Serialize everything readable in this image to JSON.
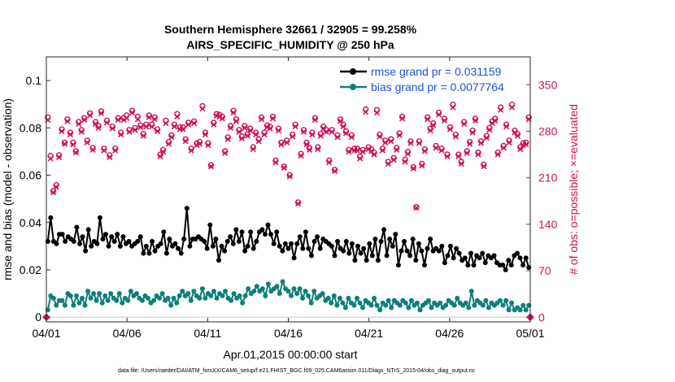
{
  "chart_data": {
    "type": "line",
    "title": "Southern Hemisphere 32661 / 32905 = 99.258%",
    "subtitle": "AIRS_SPECIFIC_HUMIDITY @ 250 hPa",
    "xlabel": "Apr.01,2015 00:00:00 start",
    "ylabel_left": "rmse and bias (model - observation)",
    "ylabel_right": "# of obs: o=possible; ×=evaluated",
    "footnote": "data file: /Users/raeder/DAI/ATM_forcXX/CAM6_setup/f.e21.FHIST_BGC.f09_025.CAM6assim.011/Diags_NTrS_2015-04/obs_diag_output.nc",
    "x_range_days": [
      0,
      30
    ],
    "x_tick_values": [
      0,
      5,
      10,
      15,
      20,
      25,
      30
    ],
    "x_tick_labels": [
      "04/01",
      "04/06",
      "04/11",
      "04/16",
      "04/21",
      "04/26",
      "05/01"
    ],
    "ylim_left": [
      -0.002,
      0.11
    ],
    "y_tick_labels_left": [
      "0",
      "0.02",
      "0.04",
      "0.06",
      "0.08",
      "0.1"
    ],
    "ylim_right": [
      -7,
      392
    ],
    "y_tick_labels_right": [
      "0",
      "70",
      "140",
      "210",
      "280",
      "350"
    ],
    "colors": {
      "rmse": "#000000",
      "bias": "#0f7f7a",
      "obs": "#d0105a",
      "legend_text": "#1f4fe0"
    },
    "legend": [
      {
        "name": "rmse",
        "label": "rmse grand pr = 0.031159"
      },
      {
        "name": "bias",
        "label": "bias grand pr = 0.0077764"
      }
    ],
    "series": [
      {
        "name": "rmse",
        "axis": "left",
        "values": [
          0.032,
          0.042,
          0.032,
          0.031,
          0.035,
          0.035,
          0.032,
          0.034,
          0.033,
          0.032,
          0.038,
          0.031,
          0.034,
          0.028,
          0.037,
          0.03,
          0.032,
          0.031,
          0.042,
          0.033,
          0.035,
          0.03,
          0.034,
          0.032,
          0.035,
          0.03,
          0.034,
          0.031,
          0.032,
          0.03,
          0.031,
          0.032,
          0.034,
          0.027,
          0.03,
          0.027,
          0.032,
          0.028,
          0.03,
          0.031,
          0.036,
          0.027,
          0.033,
          0.03,
          0.031,
          0.029,
          0.027,
          0.033,
          0.046,
          0.03,
          0.033,
          0.033,
          0.034,
          0.033,
          0.032,
          0.029,
          0.039,
          0.03,
          0.033,
          0.024,
          0.03,
          0.028,
          0.032,
          0.034,
          0.031,
          0.037,
          0.032,
          0.036,
          0.028,
          0.03,
          0.036,
          0.029,
          0.032,
          0.036,
          0.037,
          0.035,
          0.039,
          0.035,
          0.031,
          0.036,
          0.03,
          0.028,
          0.031,
          0.029,
          0.031,
          0.025,
          0.031,
          0.034,
          0.029,
          0.036,
          0.029,
          0.026,
          0.032,
          0.034,
          0.029,
          0.033,
          0.032,
          0.031,
          0.03,
          0.026,
          0.032,
          0.029,
          0.028,
          0.032,
          0.027,
          0.031,
          0.024,
          0.03,
          0.027,
          0.029,
          0.024,
          0.031,
          0.026,
          0.033,
          0.024,
          0.032,
          0.037,
          0.026,
          0.033,
          0.03,
          0.035,
          0.022,
          0.028,
          0.032,
          0.028,
          0.026,
          0.033,
          0.024,
          0.031,
          0.028,
          0.022,
          0.029,
          0.033,
          0.028,
          0.029,
          0.028,
          0.03,
          0.023,
          0.026,
          0.03,
          0.025,
          0.029,
          0.027,
          0.024,
          0.025,
          0.022,
          0.027,
          0.022,
          0.026,
          0.025,
          0.027,
          0.023,
          0.026,
          0.025,
          0.026,
          0.023,
          0.022,
          0.022,
          0.02,
          0.024,
          0.022,
          0.026,
          0.027,
          0.025,
          0.022,
          0.025,
          0.021
        ]
      },
      {
        "name": "bias",
        "axis": "left",
        "values": [
          0.003,
          0.009,
          0.008,
          0.005,
          0.007,
          0.007,
          0.005,
          0.01,
          0.009,
          0.005,
          0.009,
          0.006,
          0.008,
          0.005,
          0.011,
          0.008,
          0.01,
          0.007,
          0.01,
          0.006,
          0.009,
          0.007,
          0.01,
          0.008,
          0.007,
          0.01,
          0.006,
          0.008,
          0.007,
          0.011,
          0.009,
          0.01,
          0.008,
          0.007,
          0.009,
          0.008,
          0.006,
          0.007,
          0.009,
          0.008,
          0.01,
          0.007,
          0.008,
          0.005,
          0.008,
          0.006,
          0.009,
          0.011,
          0.009,
          0.01,
          0.007,
          0.011,
          0.009,
          0.008,
          0.012,
          0.008,
          0.01,
          0.009,
          0.011,
          0.008,
          0.01,
          0.009,
          0.011,
          0.008,
          0.007,
          0.01,
          0.008,
          0.009,
          0.006,
          0.009,
          0.012,
          0.01,
          0.011,
          0.013,
          0.011,
          0.012,
          0.009,
          0.014,
          0.011,
          0.012,
          0.013,
          0.01,
          0.015,
          0.012,
          0.011,
          0.009,
          0.012,
          0.01,
          0.012,
          0.008,
          0.011,
          0.009,
          0.006,
          0.011,
          0.008,
          0.009,
          0.01,
          0.007,
          0.008,
          0.006,
          0.009,
          0.005,
          0.008,
          0.006,
          0.004,
          0.008,
          0.006,
          0.005,
          0.008,
          0.006,
          0.004,
          0.007,
          0.006,
          0.005,
          0.008,
          0.005,
          0.003,
          0.006,
          0.005,
          0.007,
          0.004,
          0.007,
          0.006,
          0.005,
          0.007,
          0.006,
          0.004,
          0.007,
          0.005,
          0.006,
          0.003,
          0.005,
          0.006,
          0.007,
          0.004,
          0.006,
          0.005,
          0.006,
          0.004,
          0.005,
          0.007,
          0.006,
          0.005,
          0.008,
          0.006,
          0.005,
          0.006,
          0.004,
          0.011,
          0.005,
          0.007,
          0.006,
          0.005,
          0.007,
          0.004,
          0.006,
          0.005,
          0.006,
          0.007,
          0.005,
          0.007,
          0.003,
          0.006,
          0.003,
          0.004,
          0.003,
          0.005,
          0.003,
          0.005
        ]
      },
      {
        "name": "obs_possible",
        "axis": "right",
        "values": [
          301,
          243,
          190,
          199,
          244,
          283,
          263,
          298,
          278,
          263,
          250,
          294,
          282,
          300,
          266,
          307,
          255,
          294,
          288,
          310,
          254,
          296,
          244,
          287,
          254,
          300,
          278,
          300,
          304,
          282,
          311,
          285,
          302,
          289,
          276,
          290,
          304,
          290,
          301,
          283,
          245,
          252,
          296,
          264,
          274,
          290,
          306,
          286,
          286,
          268,
          293,
          254,
          295,
          262,
          264,
          318,
          278,
          262,
          229,
          293,
          306,
          305,
          302,
          250,
          271,
          288,
          311,
          298,
          282,
          272,
          288,
          276,
          284,
          256,
          278,
          268,
          301,
          278,
          289,
          287,
          302,
          236,
          284,
          263,
          227,
          266,
          214,
          275,
          290,
          173,
          246,
          282,
          263,
          255,
          278,
          300,
          256,
          276,
          287,
          282,
          236,
          282,
          222,
          274,
          298,
          290,
          280,
          252,
          274,
          254,
          254,
          242,
          252,
          313,
          256,
          253,
          248,
          312,
          275,
          254,
          266,
          234,
          268,
          240,
          255,
          277,
          302,
          237,
          249,
          265,
          226,
          166,
          265,
          231,
          253,
          301,
          284,
          292,
          258,
          308,
          254,
          299,
          245,
          286,
          320,
          275,
          245,
          234,
          294,
          250,
          264,
          281,
          299,
          248,
          265,
          230,
          273,
          285,
          295,
          299,
          248,
          316,
          258,
          290,
          266,
          320,
          281,
          276,
          256,
          262,
          263,
          301
        ]
      },
      {
        "name": "obs_evaluated",
        "axis": "right",
        "values": [
          297,
          239,
          188,
          196,
          241,
          280,
          261,
          295,
          275,
          260,
          248,
          291,
          279,
          297,
          263,
          304,
          252,
          291,
          285,
          307,
          251,
          293,
          241,
          284,
          251,
          297,
          275,
          297,
          300,
          279,
          308,
          282,
          298,
          286,
          273,
          287,
          301,
          287,
          298,
          280,
          242,
          249,
          292,
          261,
          271,
          287,
          302,
          283,
          283,
          265,
          290,
          251,
          292,
          259,
          261,
          314,
          275,
          259,
          227,
          290,
          303,
          302,
          299,
          247,
          268,
          285,
          308,
          295,
          279,
          269,
          285,
          273,
          281,
          253,
          275,
          265,
          298,
          275,
          286,
          284,
          299,
          233,
          281,
          260,
          225,
          263,
          212,
          272,
          287,
          171,
          243,
          279,
          260,
          252,
          275,
          297,
          253,
          273,
          284,
          279,
          233,
          279,
          220,
          271,
          295,
          287,
          277,
          249,
          271,
          251,
          251,
          239,
          249,
          309,
          253,
          250,
          245,
          308,
          272,
          251,
          263,
          231,
          265,
          237,
          252,
          274,
          299,
          234,
          246,
          262,
          224,
          165,
          262,
          228,
          250,
          298,
          281,
          289,
          255,
          305,
          251,
          296,
          242,
          283,
          316,
          272,
          242,
          231,
          291,
          247,
          261,
          278,
          296,
          245,
          262,
          227,
          270,
          282,
          292,
          296,
          245,
          312,
          255,
          287,
          263,
          316,
          278,
          273,
          253,
          259,
          260,
          298
        ]
      }
    ]
  }
}
